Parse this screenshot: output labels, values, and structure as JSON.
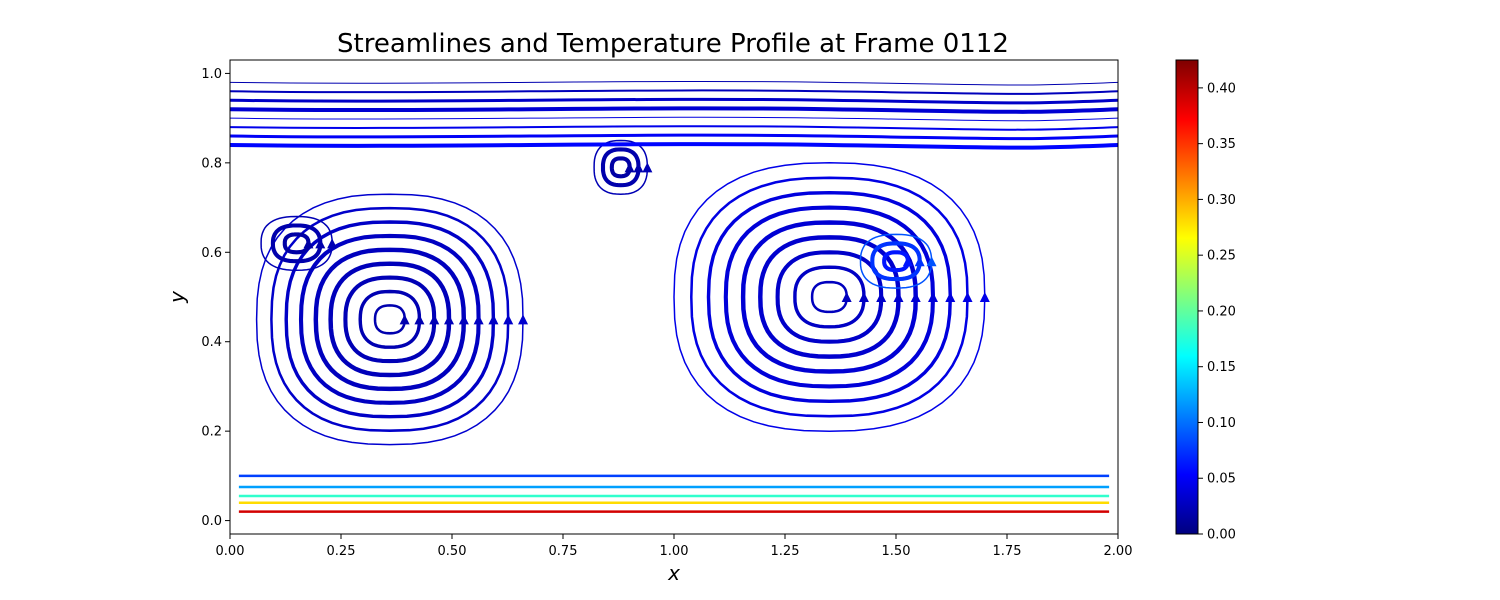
{
  "chart_data": {
    "type": "streamline",
    "title": "Streamlines and Temperature Profile at Frame 0112",
    "xlabel": "x",
    "ylabel": "y",
    "xlim": [
      0,
      2
    ],
    "ylim": [
      -0.03,
      1.03
    ],
    "x_ticks": [
      "0.00",
      "0.25",
      "0.50",
      "0.75",
      "1.00",
      "1.25",
      "1.50",
      "1.75",
      "2.00"
    ],
    "y_ticks": [
      "0.0",
      "0.2",
      "0.4",
      "0.6",
      "0.8",
      "1.0"
    ],
    "grid": false,
    "colorbar": {
      "colormap": "jet",
      "range": [
        0,
        0.425
      ],
      "ticks": [
        "0.00",
        "0.05",
        "0.10",
        "0.15",
        "0.20",
        "0.25",
        "0.30",
        "0.35",
        "0.40"
      ],
      "stops": [
        "#00007f",
        "#0000ff",
        "#007fff",
        "#00ffff",
        "#7fff7f",
        "#ffff00",
        "#ff7f00",
        "#ff0000",
        "#7f0000"
      ]
    },
    "vortices": [
      {
        "name": "left-cell",
        "center": [
          0.36,
          0.45
        ],
        "rx": 0.3,
        "ry": 0.28,
        "value": 0.03
      },
      {
        "name": "left-inner",
        "center": [
          0.15,
          0.62
        ],
        "rx": 0.08,
        "ry": 0.06,
        "value": 0.02
      },
      {
        "name": "top-middle",
        "center": [
          0.88,
          0.79
        ],
        "rx": 0.06,
        "ry": 0.06,
        "value": 0.02
      },
      {
        "name": "right-cell",
        "center": [
          1.35,
          0.5
        ],
        "rx": 0.35,
        "ry": 0.3,
        "value": 0.04
      },
      {
        "name": "right-inner",
        "center": [
          1.5,
          0.58
        ],
        "rx": 0.08,
        "ry": 0.06,
        "value": 0.08
      }
    ],
    "bottom_layers": [
      {
        "y": 0.02,
        "value": 0.39
      },
      {
        "y": 0.04,
        "value": 0.28
      },
      {
        "y": 0.055,
        "value": 0.18
      },
      {
        "y": 0.075,
        "value": 0.12
      },
      {
        "y": 0.1,
        "value": 0.08
      }
    ]
  }
}
